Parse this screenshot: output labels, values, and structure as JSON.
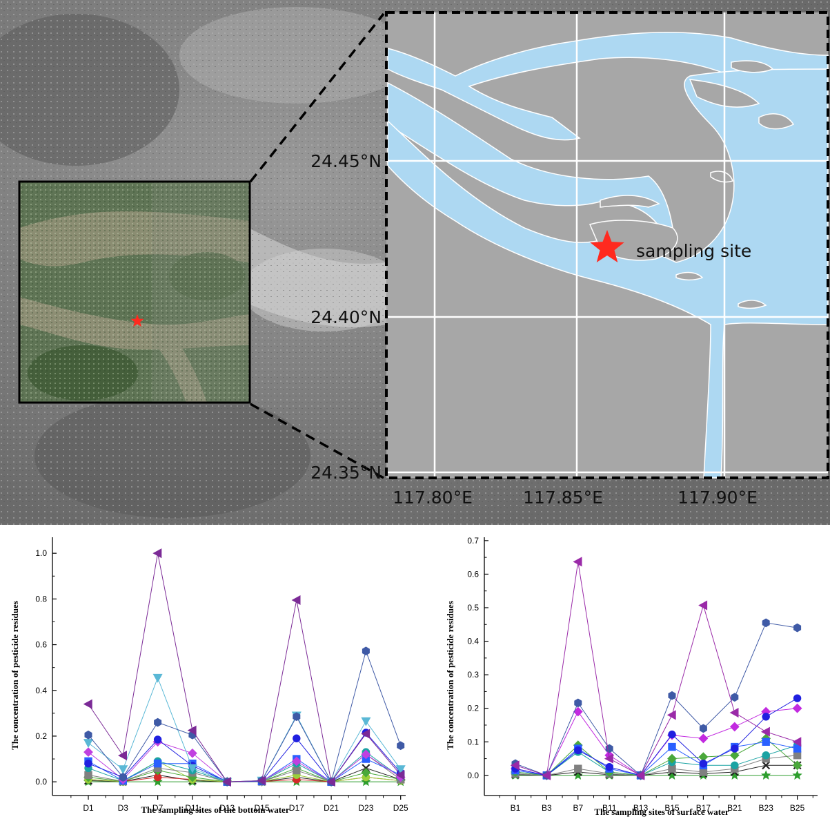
{
  "map": {
    "site_label": "sampling site",
    "lat_labels": [
      "24.45°N",
      "24.40°N",
      "24.35°N"
    ],
    "lon_labels": [
      "117.80°E",
      "117.85°E",
      "117.90°E"
    ],
    "colors": {
      "water": "#add8f2",
      "land": "#a7a7a7",
      "grid": "#ffffff",
      "marker": "#ff2a1f"
    },
    "marker_icon": "star-icon"
  },
  "chart_data": [
    {
      "type": "line",
      "ylabel": "The concentration of pesticide residues",
      "xlabel": "The sampling sites of the bottom water",
      "categories": [
        "D1",
        "D3",
        "D7",
        "D11",
        "D13",
        "D15",
        "D17",
        "D21",
        "D23",
        "D25"
      ],
      "yticks": [
        "0.0",
        "0.2",
        "0.4",
        "0.6",
        "0.8",
        "1.0"
      ],
      "ylim": [
        -0.06,
        1.07
      ],
      "series": [
        {
          "color": "#7b2a96",
          "marker": "tri-left",
          "values": [
            0.34,
            0.115,
            1.0,
            0.225,
            0,
            0.005,
            0.795,
            0,
            0.21,
            0.03
          ]
        },
        {
          "color": "#3f5aa6",
          "marker": "hex",
          "values": [
            0.205,
            0.02,
            0.26,
            0.205,
            0,
            0.005,
            0.285,
            0,
            0.572,
            0.158
          ]
        },
        {
          "color": "#5ab8d6",
          "marker": "tri-down",
          "values": [
            0.17,
            0.055,
            0.455,
            0.06,
            0,
            0.005,
            0.29,
            0,
            0.265,
            0.055
          ]
        },
        {
          "color": "#2020e0",
          "marker": "circle",
          "values": [
            0.08,
            0.02,
            0.185,
            0.07,
            0,
            0.003,
            0.19,
            0,
            0.215,
            0.04
          ]
        },
        {
          "color": "#c040e0",
          "marker": "diamond",
          "values": [
            0.13,
            0.01,
            0.175,
            0.125,
            0,
            0.003,
            0.09,
            0,
            0.12,
            0.02
          ]
        },
        {
          "color": "#2a60ff",
          "marker": "square",
          "values": [
            0.09,
            0.005,
            0.08,
            0.08,
            0,
            0.002,
            0.1,
            0,
            0.1,
            0.03
          ]
        },
        {
          "color": "#1aa3a3",
          "marker": "circle",
          "values": [
            0.06,
            0.005,
            0.09,
            0.05,
            0,
            0.002,
            0.08,
            0,
            0.13,
            0.02
          ]
        },
        {
          "color": "#808080",
          "marker": "square",
          "values": [
            0.03,
            0.002,
            0.06,
            0.04,
            0,
            0.001,
            0.05,
            0,
            0.12,
            0.01
          ]
        },
        {
          "color": "#4aa83a",
          "marker": "diamond",
          "values": [
            0.02,
            0.002,
            0.05,
            0.02,
            0,
            0.001,
            0.06,
            0,
            0.04,
            0.01
          ]
        },
        {
          "color": "#9bcf3a",
          "marker": "circle",
          "values": [
            0.01,
            0.001,
            0.09,
            0.01,
            0,
            0.001,
            0.03,
            0,
            0.02,
            0.005
          ]
        },
        {
          "color": "#d42a2a",
          "marker": "circle",
          "values": [
            0.01,
            0.001,
            0.02,
            0.01,
            0,
            0.001,
            0.01,
            0,
            0.02,
            0.005
          ]
        },
        {
          "color": "#222222",
          "marker": "x",
          "values": [
            0.005,
            0.001,
            0.03,
            0.005,
            0,
            0.001,
            0.02,
            0,
            0.06,
            0.01
          ]
        },
        {
          "color": "#2e9e2e",
          "marker": "star",
          "values": [
            0.0,
            0.0,
            0.0,
            0.0,
            0,
            0.0,
            0.0,
            0,
            0.0,
            0.0
          ]
        }
      ]
    },
    {
      "type": "line",
      "ylabel": "The concentration of pesticide residues",
      "xlabel": "The sampling sites of surface water",
      "categories": [
        "B1",
        "B3",
        "B7",
        "B11",
        "B13",
        "B15",
        "B17",
        "B21",
        "B23",
        "B25"
      ],
      "yticks": [
        "0.0",
        "0.1",
        "0.2",
        "0.3",
        "0.4",
        "0.5",
        "0.6",
        "0.7"
      ],
      "ylim": [
        -0.06,
        0.71
      ],
      "series": [
        {
          "color": "#9a2aa8",
          "marker": "tri-left",
          "values": [
            0.03,
            0.0,
            0.637,
            0.05,
            0,
            0.18,
            0.507,
            0.187,
            0.13,
            0.1
          ]
        },
        {
          "color": "#3f5aa6",
          "marker": "hex",
          "values": [
            0.035,
            0.0,
            0.216,
            0.08,
            0,
            0.238,
            0.14,
            0.233,
            0.455,
            0.44
          ]
        },
        {
          "color": "#2020e0",
          "marker": "circle",
          "values": [
            0.02,
            0.0,
            0.075,
            0.025,
            0,
            0.122,
            0.035,
            0.08,
            0.175,
            0.23
          ]
        },
        {
          "color": "#c22ae0",
          "marker": "diamond",
          "values": [
            0.02,
            0.0,
            0.19,
            0.06,
            0,
            0.12,
            0.11,
            0.145,
            0.19,
            0.2
          ]
        },
        {
          "color": "#2a60ff",
          "marker": "square",
          "values": [
            0.015,
            0.0,
            0.08,
            0.02,
            0,
            0.085,
            0.03,
            0.085,
            0.1,
            0.08
          ]
        },
        {
          "color": "#4aa83a",
          "marker": "diamond",
          "values": [
            0.01,
            0.0,
            0.09,
            0.01,
            0,
            0.05,
            0.055,
            0.06,
            0.11,
            0.03
          ]
        },
        {
          "color": "#1aa3a3",
          "marker": "circle",
          "values": [
            0.01,
            0.0,
            0.07,
            0.01,
            0,
            0.04,
            0.03,
            0.03,
            0.06,
            0.09
          ]
        },
        {
          "color": "#808080",
          "marker": "square",
          "values": [
            0.005,
            0.0,
            0.02,
            0.005,
            0,
            0.02,
            0.01,
            0.02,
            0.05,
            0.06
          ]
        },
        {
          "color": "#222222",
          "marker": "x",
          "values": [
            0.002,
            0.0,
            0.01,
            0.002,
            0,
            0.01,
            0.005,
            0.01,
            0.03,
            0.03
          ]
        },
        {
          "color": "#2e9e2e",
          "marker": "star",
          "values": [
            0.0,
            0.0,
            0.0,
            0.0,
            0,
            0.0,
            0.0,
            0.0,
            0.0,
            0.0
          ]
        }
      ]
    }
  ]
}
